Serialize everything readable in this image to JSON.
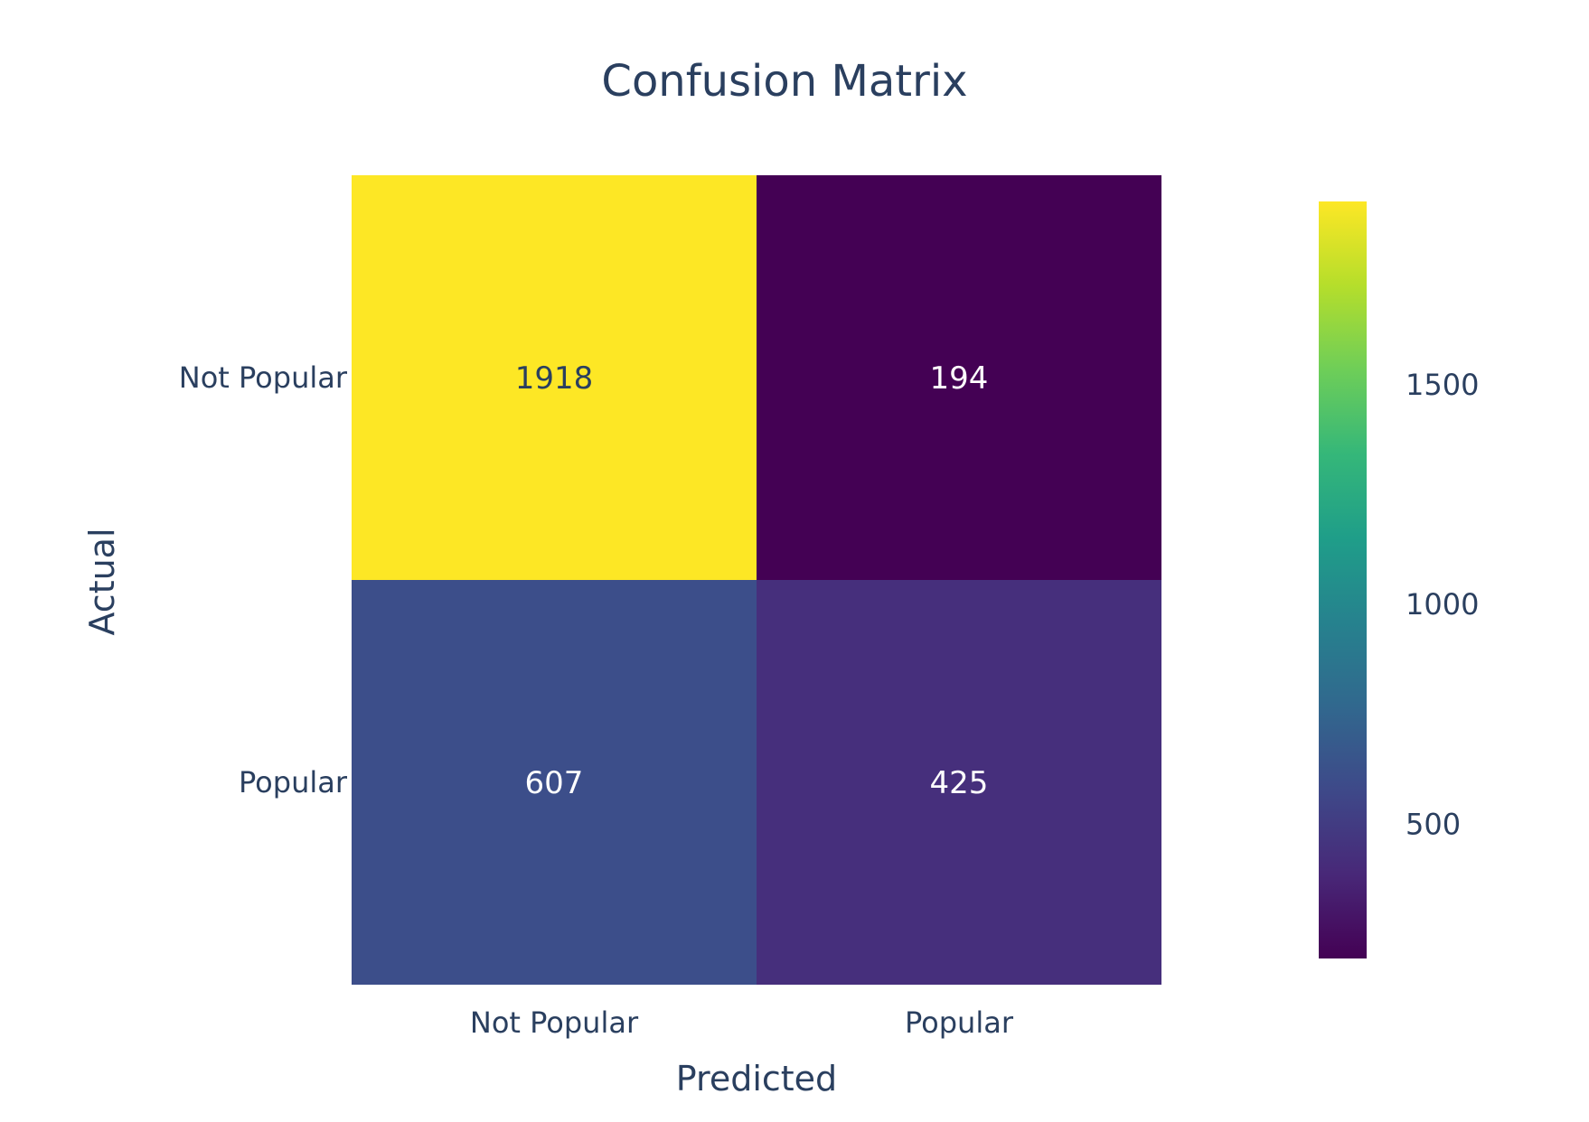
{
  "chart_data": {
    "type": "heatmap",
    "title": "Confusion Matrix",
    "xlabel": "Predicted",
    "ylabel": "Actual",
    "x_categories": [
      "Not Popular",
      "Popular"
    ],
    "y_categories": [
      "Not Popular",
      "Popular"
    ],
    "z": [
      [
        1918,
        194
      ],
      [
        607,
        425
      ]
    ],
    "colorscale": "viridis",
    "zrange": [
      194,
      1918
    ],
    "colorbar_ticks": [
      500,
      1000,
      1500
    ],
    "colors": {
      "text_dark": "#2a3f5f",
      "text_light": "#ffffff",
      "viridis": [
        "#440154",
        "#482878",
        "#3e4989",
        "#31688e",
        "#26828e",
        "#1f9e89",
        "#35b779",
        "#6ece58",
        "#b5de2b",
        "#fde725"
      ]
    }
  }
}
